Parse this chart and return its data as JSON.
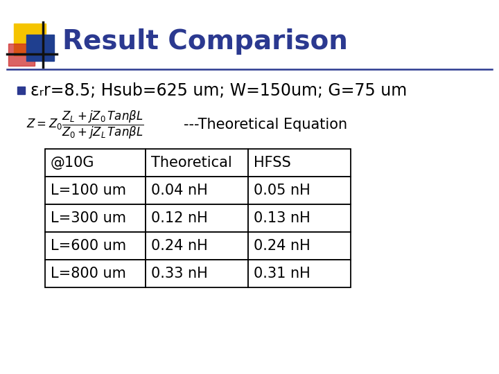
{
  "title": "Result Comparison",
  "title_color": "#2B3990",
  "title_fontsize": 28,
  "bg_color": "#FFFFFF",
  "bullet_text": "εᵣr=8.5; Hsub=625 um; W=150um; G=75 um",
  "bullet_color": "#000000",
  "bullet_fontsize": 17,
  "equation_label": "---Theoretical Equation",
  "equation_fontsize": 15,
  "table_header": [
    "@10G",
    "Theoretical",
    "HFSS"
  ],
  "table_rows": [
    [
      "L=100 um",
      "0.04 nH",
      "0.05 nH"
    ],
    [
      "L=300 um",
      "0.12 nH",
      "0.13 nH"
    ],
    [
      "L=600 um",
      "0.24 nH",
      "0.24 nH"
    ],
    [
      "L=800 um",
      "0.33 nH",
      "0.31 nH"
    ]
  ],
  "row_bg": "#FFFFFF",
  "table_fontsize": 15,
  "logo_yellow": "#F5C400",
  "logo_blue": "#1F3F8F",
  "logo_red": "#CC2222",
  "accent_line_color": "#2B3990",
  "bullet_square_color": "#2B3990"
}
